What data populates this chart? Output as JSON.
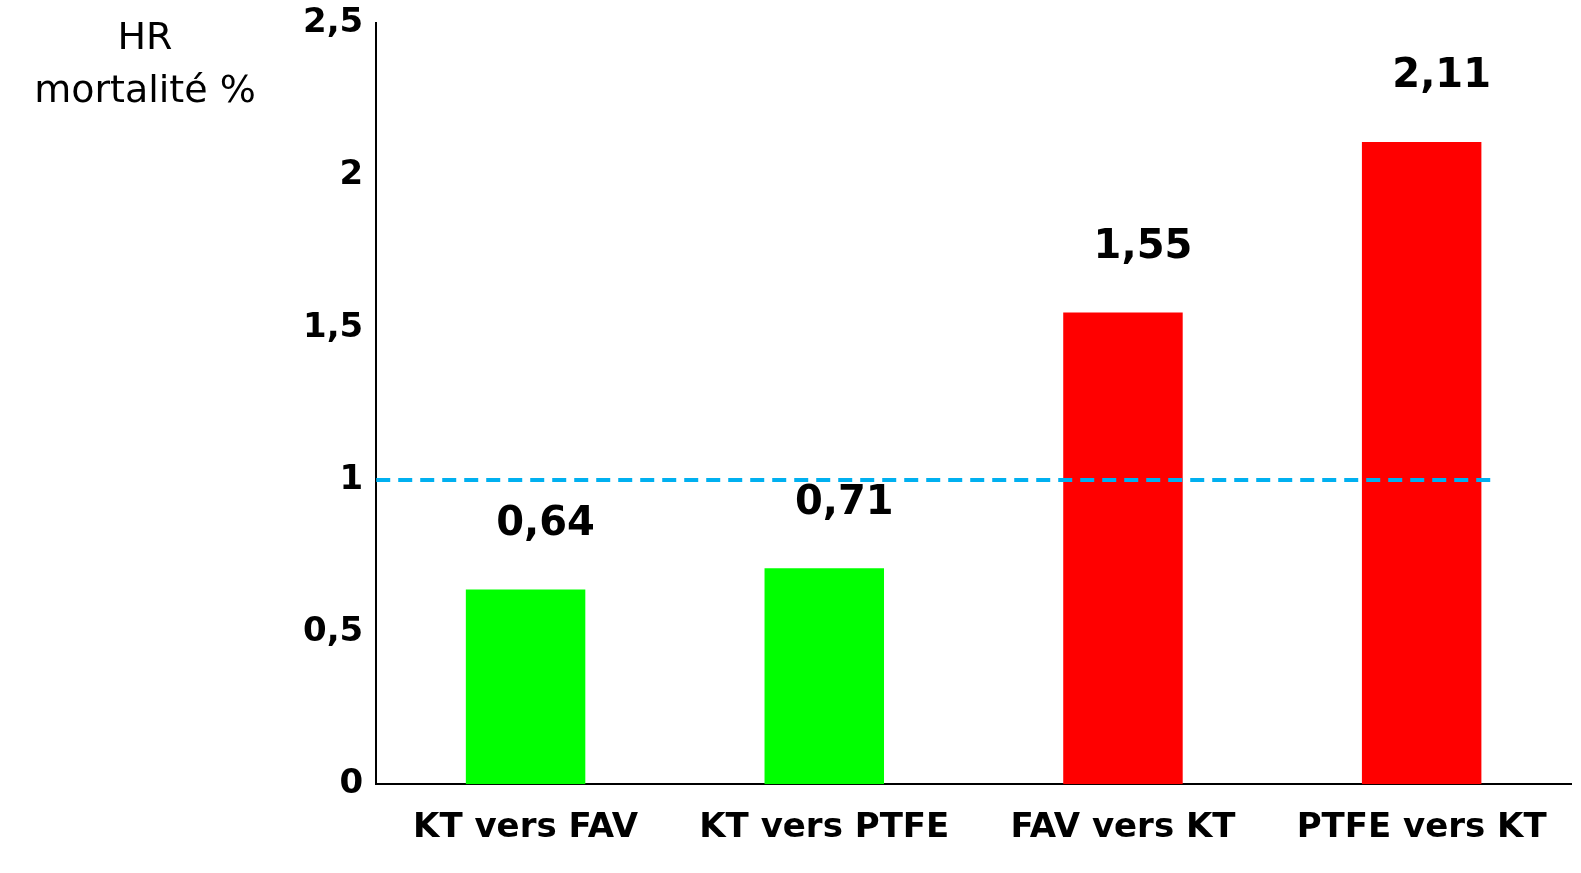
{
  "chart_data": {
    "type": "bar",
    "ylabel": "HR\nmortalité %",
    "categories": [
      "KT vers FAV",
      "KT vers PTFE",
      "FAV vers KT",
      "PTFE vers KT"
    ],
    "values": [
      0.64,
      0.71,
      1.55,
      2.11
    ],
    "colors": [
      "#00ff00",
      "#00ff00",
      "#ff0000",
      "#ff0000"
    ],
    "value_labels": [
      "0,64",
      "0,71",
      "1,55",
      "2,11"
    ],
    "ylim": [
      0,
      2.5
    ],
    "yticks": [
      0,
      {
        "value": 0.5,
        "label": "0,5"
      },
      1,
      {
        "value": 1.5,
        "label": "1,5"
      },
      2,
      {
        "value": 2.5,
        "label": "2,5"
      }
    ],
    "ref_lines": [
      {
        "axis": "y",
        "value": 1,
        "color": "#00b0f0",
        "line_style": "dashed"
      }
    ],
    "grid": false,
    "legend": false
  }
}
